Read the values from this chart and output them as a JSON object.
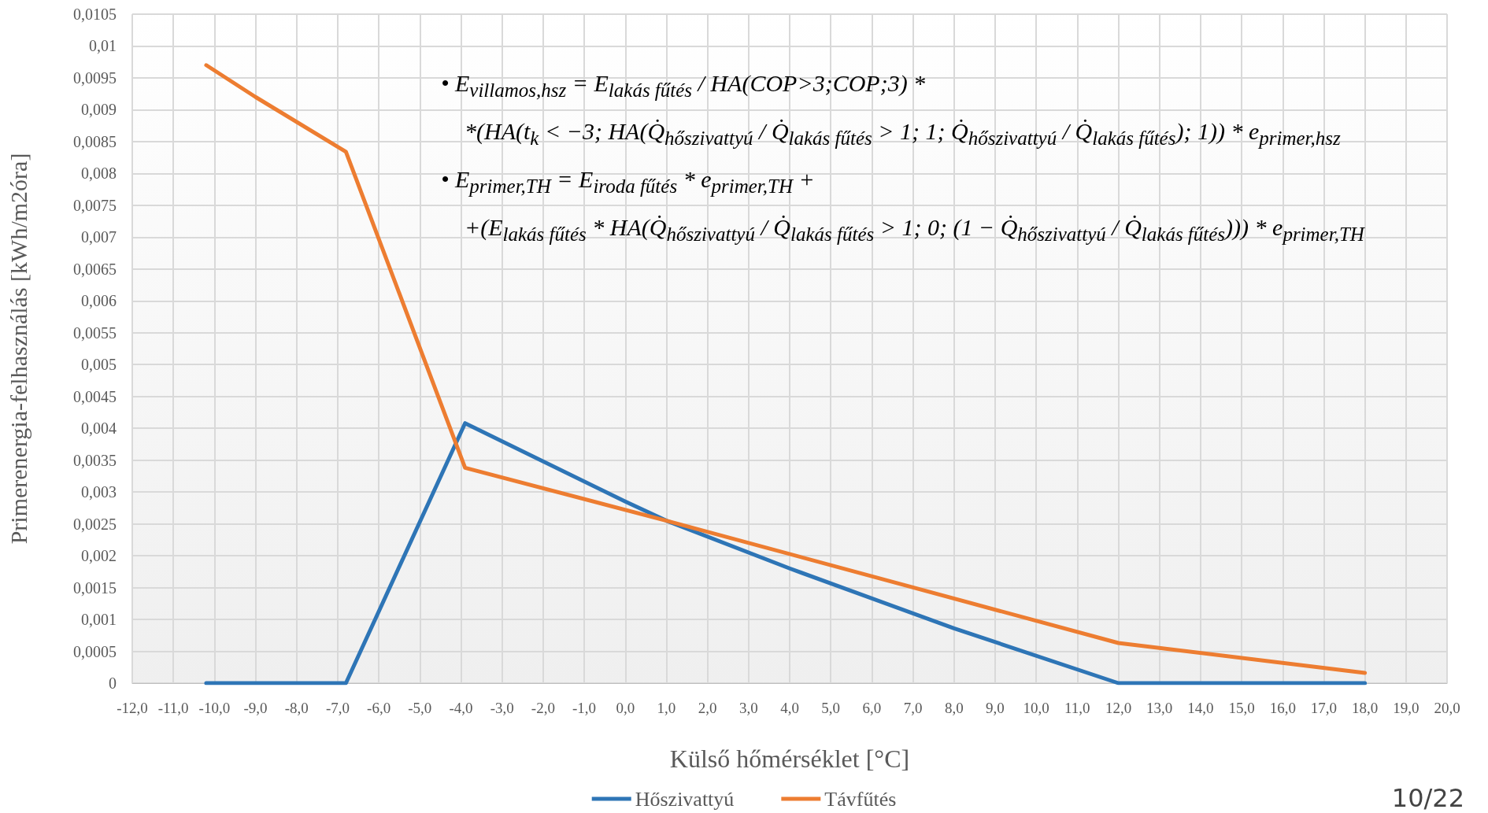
{
  "chart_data": {
    "type": "line",
    "xlabel": "Külső hőmérséklet [°C]",
    "ylabel": "Primerenergia-felhasználás [kWh/m2óra]",
    "series": [
      {
        "name": "Hőszivattyú",
        "color": "#2e75b6",
        "x": [
          -10.2,
          -6.8,
          -3.9,
          0,
          1,
          4,
          8,
          12,
          18
        ],
        "values": [
          0,
          0,
          0.00408,
          0.00285,
          0.00255,
          0.0018,
          0.00086,
          0,
          0
        ]
      },
      {
        "name": "Távfűtés",
        "color": "#ed7d31",
        "x": [
          -10.2,
          -9,
          -6.8,
          -3.9,
          1,
          12,
          18
        ],
        "values": [
          0.0097,
          0.0092,
          0.00834,
          0.00338,
          0.00255,
          0.00063,
          0.00016
        ]
      }
    ],
    "xlim": [
      -12,
      20
    ],
    "xticks": [
      {
        "value": -12,
        "label": "-12,0"
      },
      {
        "value": -11,
        "label": "-11,0"
      },
      {
        "value": -10,
        "label": "-10,0"
      },
      {
        "value": -9,
        "label": "-9,0"
      },
      {
        "value": -8,
        "label": "-8,0"
      },
      {
        "value": -7,
        "label": "-7,0"
      },
      {
        "value": -6,
        "label": "-6,0"
      },
      {
        "value": -5,
        "label": "-5,0"
      },
      {
        "value": -4,
        "label": "-4,0"
      },
      {
        "value": -3,
        "label": "-3,0"
      },
      {
        "value": -2,
        "label": "-2,0"
      },
      {
        "value": -1,
        "label": "-1,0"
      },
      {
        "value": 0,
        "label": "0,0"
      },
      {
        "value": 1,
        "label": "1,0"
      },
      {
        "value": 2,
        "label": "2,0"
      },
      {
        "value": 3,
        "label": "3,0"
      },
      {
        "value": 4,
        "label": "4,0"
      },
      {
        "value": 5,
        "label": "5,0"
      },
      {
        "value": 6,
        "label": "6,0"
      },
      {
        "value": 7,
        "label": "7,0"
      },
      {
        "value": 8,
        "label": "8,0"
      },
      {
        "value": 9,
        "label": "9,0"
      },
      {
        "value": 10,
        "label": "10,0"
      },
      {
        "value": 11,
        "label": "11,0"
      },
      {
        "value": 12,
        "label": "12,0"
      },
      {
        "value": 13,
        "label": "13,0"
      },
      {
        "value": 14,
        "label": "14,0"
      },
      {
        "value": 15,
        "label": "15,0"
      },
      {
        "value": 16,
        "label": "16,0"
      },
      {
        "value": 17,
        "label": "17,0"
      },
      {
        "value": 18,
        "label": "18,0"
      },
      {
        "value": 19,
        "label": "19,0"
      },
      {
        "value": 20,
        "label": "20,0"
      }
    ],
    "ylim": [
      0,
      0.0105
    ],
    "yticks": [
      0,
      {
        "value": 0.0005,
        "label": "0,0005"
      },
      {
        "value": 0.001,
        "label": "0,001"
      },
      {
        "value": 0.0015,
        "label": "0,0015"
      },
      {
        "value": 0.002,
        "label": "0,002"
      },
      {
        "value": 0.0025,
        "label": "0,0025"
      },
      {
        "value": 0.003,
        "label": "0,003"
      },
      {
        "value": 0.0035,
        "label": "0,0035"
      },
      {
        "value": 0.004,
        "label": "0,004"
      },
      {
        "value": 0.0045,
        "label": "0,0045"
      },
      {
        "value": 0.005,
        "label": "0,005"
      },
      {
        "value": 0.0055,
        "label": "0,0055"
      },
      {
        "value": 0.006,
        "label": "0,006"
      },
      {
        "value": 0.0065,
        "label": "0,0065"
      },
      {
        "value": 0.007,
        "label": "0,007"
      },
      {
        "value": 0.0075,
        "label": "0,0075"
      },
      {
        "value": 0.008,
        "label": "0,008"
      },
      {
        "value": 0.0085,
        "label": "0,0085"
      },
      {
        "value": 0.009,
        "label": "0,009"
      },
      {
        "value": 0.0095,
        "label": "0,0095"
      },
      {
        "value": 0.01,
        "label": "0,01"
      },
      {
        "value": 0.0105,
        "label": "0,0105"
      }
    ],
    "grid": true,
    "legend": "bottom",
    "marker": "none",
    "line_style": "solid",
    "annotations": [
      "• E$_{villamos,hsz}$ = E$_{lakás fűtés}$ / HA(COP>3;COP;3) *",
      "*(HA(t$_{k}$ < −3; HA(Q̇$_{hőszivattyú}$ / Q̇$_{lakás fűtés}$ > 1; 1; Q̇$_{hőszivattyú}$ / Q̇$_{lakás fűtés}$); 1)) * e$_{primer,hsz}$",
      "• E$_{primer,TH}$ = E$_{iroda fűtés}$ * e$_{primer,TH}$ +",
      "+(E$_{lakás fűtés}$ * HA(Q̇$_{hőszivattyú}$ / Q̇$_{lakás fűtés}$ > 1; 0; (1 − Q̇$_{hőszivattyú}$ / Q̇$_{lakás fűtés}$))) * e$_{primer,TH}$",
      "10/22"
    ]
  }
}
